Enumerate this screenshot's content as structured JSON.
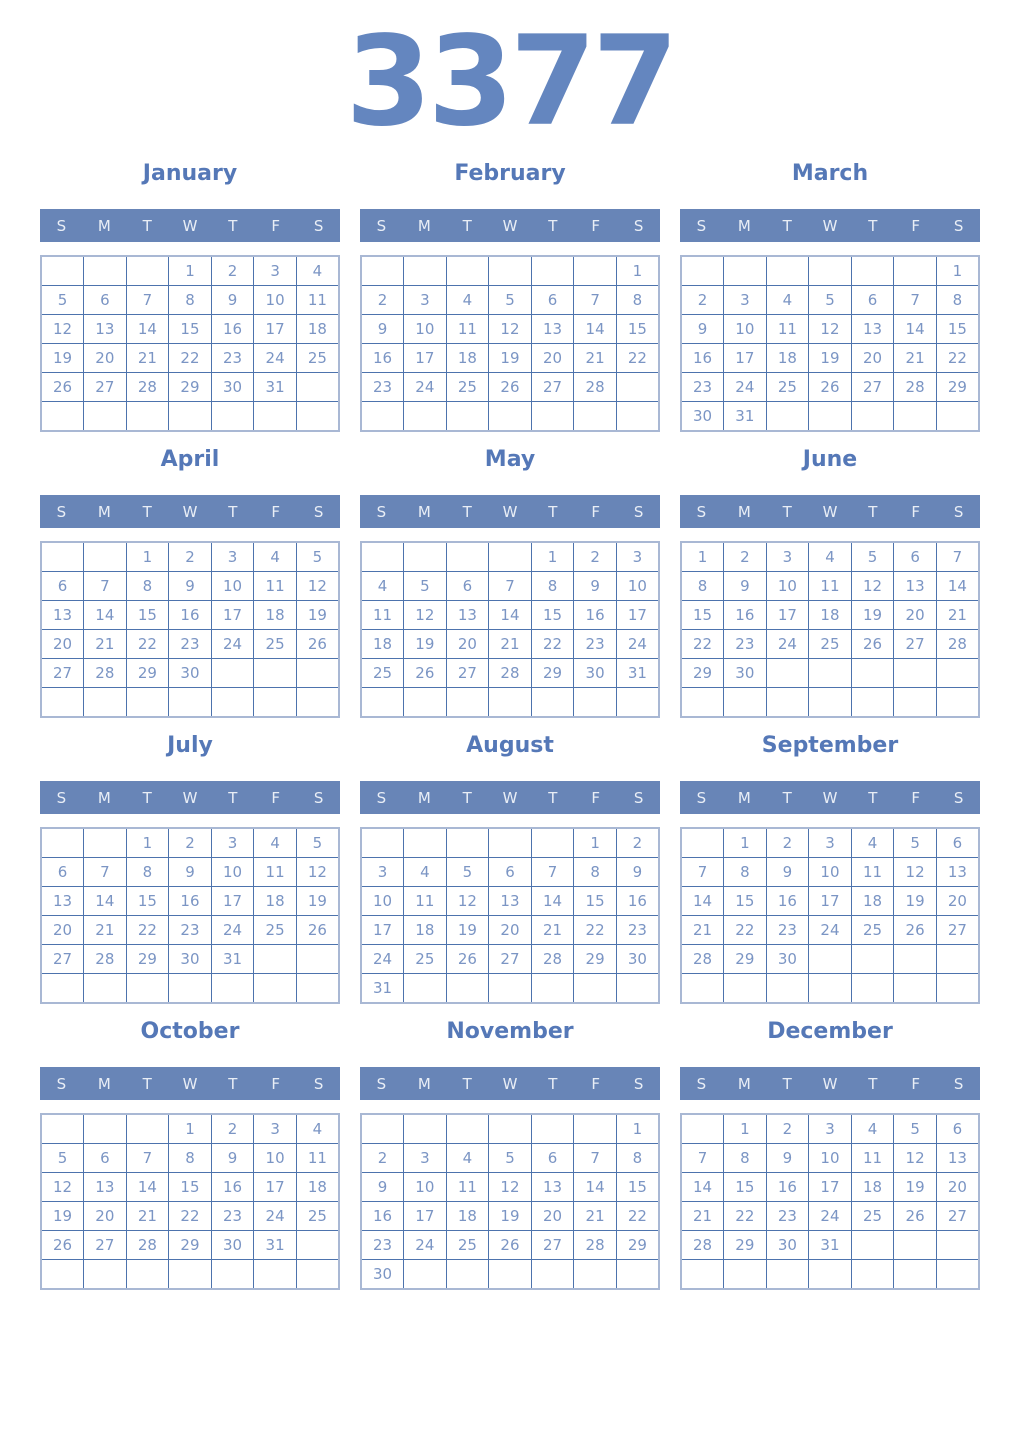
{
  "year": "3377",
  "weekday_headers": [
    "S",
    "M",
    "T",
    "W",
    "T",
    "F",
    "S"
  ],
  "colors": {
    "year_text": "#6486bf",
    "month_title": "#5578b7",
    "weekday_bar_bg": "#6885b7",
    "weekday_bar_text": "#e9eef6",
    "grid_outer_border": "#a9b8d4",
    "grid_inner_border": "#4d73ad",
    "date_text": "#7b95c4",
    "page_bg": "#ffffff"
  },
  "months": [
    {
      "name": "January",
      "weeks": [
        [
          "",
          "",
          "",
          "1",
          "2",
          "3",
          "4"
        ],
        [
          "5",
          "6",
          "7",
          "8",
          "9",
          "10",
          "11"
        ],
        [
          "12",
          "13",
          "14",
          "15",
          "16",
          "17",
          "18"
        ],
        [
          "19",
          "20",
          "21",
          "22",
          "23",
          "24",
          "25"
        ],
        [
          "26",
          "27",
          "28",
          "29",
          "30",
          "31",
          ""
        ],
        [
          "",
          "",
          "",
          "",
          "",
          "",
          ""
        ]
      ]
    },
    {
      "name": "February",
      "weeks": [
        [
          "",
          "",
          "",
          "",
          "",
          "",
          "1"
        ],
        [
          "2",
          "3",
          "4",
          "5",
          "6",
          "7",
          "8"
        ],
        [
          "9",
          "10",
          "11",
          "12",
          "13",
          "14",
          "15"
        ],
        [
          "16",
          "17",
          "18",
          "19",
          "20",
          "21",
          "22"
        ],
        [
          "23",
          "24",
          "25",
          "26",
          "27",
          "28",
          ""
        ],
        [
          "",
          "",
          "",
          "",
          "",
          "",
          ""
        ]
      ]
    },
    {
      "name": "March",
      "weeks": [
        [
          "",
          "",
          "",
          "",
          "",
          "",
          "1"
        ],
        [
          "2",
          "3",
          "4",
          "5",
          "6",
          "7",
          "8"
        ],
        [
          "9",
          "10",
          "11",
          "12",
          "13",
          "14",
          "15"
        ],
        [
          "16",
          "17",
          "18",
          "19",
          "20",
          "21",
          "22"
        ],
        [
          "23",
          "24",
          "25",
          "26",
          "27",
          "28",
          "29"
        ],
        [
          "30",
          "31",
          "",
          "",
          "",
          "",
          ""
        ]
      ]
    },
    {
      "name": "April",
      "weeks": [
        [
          "",
          "",
          "1",
          "2",
          "3",
          "4",
          "5"
        ],
        [
          "6",
          "7",
          "8",
          "9",
          "10",
          "11",
          "12"
        ],
        [
          "13",
          "14",
          "15",
          "16",
          "17",
          "18",
          "19"
        ],
        [
          "20",
          "21",
          "22",
          "23",
          "24",
          "25",
          "26"
        ],
        [
          "27",
          "28",
          "29",
          "30",
          "",
          "",
          ""
        ],
        [
          "",
          "",
          "",
          "",
          "",
          "",
          ""
        ]
      ]
    },
    {
      "name": "May",
      "weeks": [
        [
          "",
          "",
          "",
          "",
          "1",
          "2",
          "3"
        ],
        [
          "4",
          "5",
          "6",
          "7",
          "8",
          "9",
          "10"
        ],
        [
          "11",
          "12",
          "13",
          "14",
          "15",
          "16",
          "17"
        ],
        [
          "18",
          "19",
          "20",
          "21",
          "22",
          "23",
          "24"
        ],
        [
          "25",
          "26",
          "27",
          "28",
          "29",
          "30",
          "31"
        ],
        [
          "",
          "",
          "",
          "",
          "",
          "",
          ""
        ]
      ]
    },
    {
      "name": "June",
      "weeks": [
        [
          "1",
          "2",
          "3",
          "4",
          "5",
          "6",
          "7"
        ],
        [
          "8",
          "9",
          "10",
          "11",
          "12",
          "13",
          "14"
        ],
        [
          "15",
          "16",
          "17",
          "18",
          "19",
          "20",
          "21"
        ],
        [
          "22",
          "23",
          "24",
          "25",
          "26",
          "27",
          "28"
        ],
        [
          "29",
          "30",
          "",
          "",
          "",
          "",
          ""
        ],
        [
          "",
          "",
          "",
          "",
          "",
          "",
          ""
        ]
      ]
    },
    {
      "name": "July",
      "weeks": [
        [
          "",
          "",
          "1",
          "2",
          "3",
          "4",
          "5"
        ],
        [
          "6",
          "7",
          "8",
          "9",
          "10",
          "11",
          "12"
        ],
        [
          "13",
          "14",
          "15",
          "16",
          "17",
          "18",
          "19"
        ],
        [
          "20",
          "21",
          "22",
          "23",
          "24",
          "25",
          "26"
        ],
        [
          "27",
          "28",
          "29",
          "30",
          "31",
          "",
          ""
        ],
        [
          "",
          "",
          "",
          "",
          "",
          "",
          ""
        ]
      ]
    },
    {
      "name": "August",
      "weeks": [
        [
          "",
          "",
          "",
          "",
          "",
          "1",
          "2"
        ],
        [
          "3",
          "4",
          "5",
          "6",
          "7",
          "8",
          "9"
        ],
        [
          "10",
          "11",
          "12",
          "13",
          "14",
          "15",
          "16"
        ],
        [
          "17",
          "18",
          "19",
          "20",
          "21",
          "22",
          "23"
        ],
        [
          "24",
          "25",
          "26",
          "27",
          "28",
          "29",
          "30"
        ],
        [
          "31",
          "",
          "",
          "",
          "",
          "",
          ""
        ]
      ]
    },
    {
      "name": "September",
      "weeks": [
        [
          "",
          "1",
          "2",
          "3",
          "4",
          "5",
          "6"
        ],
        [
          "7",
          "8",
          "9",
          "10",
          "11",
          "12",
          "13"
        ],
        [
          "14",
          "15",
          "16",
          "17",
          "18",
          "19",
          "20"
        ],
        [
          "21",
          "22",
          "23",
          "24",
          "25",
          "26",
          "27"
        ],
        [
          "28",
          "29",
          "30",
          "",
          "",
          "",
          ""
        ],
        [
          "",
          "",
          "",
          "",
          "",
          "",
          ""
        ]
      ]
    },
    {
      "name": "October",
      "weeks": [
        [
          "",
          "",
          "",
          "1",
          "2",
          "3",
          "4"
        ],
        [
          "5",
          "6",
          "7",
          "8",
          "9",
          "10",
          "11"
        ],
        [
          "12",
          "13",
          "14",
          "15",
          "16",
          "17",
          "18"
        ],
        [
          "19",
          "20",
          "21",
          "22",
          "23",
          "24",
          "25"
        ],
        [
          "26",
          "27",
          "28",
          "29",
          "30",
          "31",
          ""
        ],
        [
          "",
          "",
          "",
          "",
          "",
          "",
          ""
        ]
      ]
    },
    {
      "name": "November",
      "weeks": [
        [
          "",
          "",
          "",
          "",
          "",
          "",
          "1"
        ],
        [
          "2",
          "3",
          "4",
          "5",
          "6",
          "7",
          "8"
        ],
        [
          "9",
          "10",
          "11",
          "12",
          "13",
          "14",
          "15"
        ],
        [
          "16",
          "17",
          "18",
          "19",
          "20",
          "21",
          "22"
        ],
        [
          "23",
          "24",
          "25",
          "26",
          "27",
          "28",
          "29"
        ],
        [
          "30",
          "",
          "",
          "",
          "",
          "",
          ""
        ]
      ]
    },
    {
      "name": "December",
      "weeks": [
        [
          "",
          "1",
          "2",
          "3",
          "4",
          "5",
          "6"
        ],
        [
          "7",
          "8",
          "9",
          "10",
          "11",
          "12",
          "13"
        ],
        [
          "14",
          "15",
          "16",
          "17",
          "18",
          "19",
          "20"
        ],
        [
          "21",
          "22",
          "23",
          "24",
          "25",
          "26",
          "27"
        ],
        [
          "28",
          "29",
          "30",
          "31",
          "",
          "",
          ""
        ],
        [
          "",
          "",
          "",
          "",
          "",
          "",
          ""
        ]
      ]
    }
  ]
}
